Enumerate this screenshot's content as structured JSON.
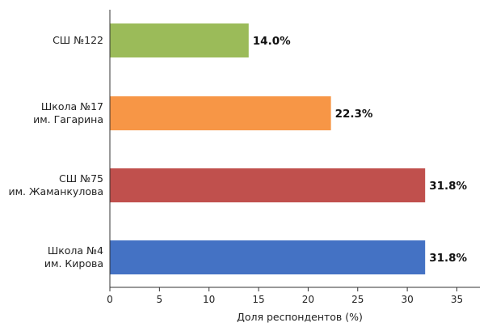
{
  "chart_data": {
    "type": "bar",
    "orientation": "horizontal",
    "categories": [
      [
        "СШ №122"
      ],
      [
        "Школа №17",
        "им. Гагарина"
      ],
      [
        "СШ №75",
        "им. Жаманкулова"
      ],
      [
        "Школа №4",
        "им. Кирова"
      ]
    ],
    "values": [
      14.0,
      22.3,
      31.8,
      31.8
    ],
    "value_labels": [
      "14.0%",
      "22.3%",
      "31.8%",
      "31.8%"
    ],
    "colors": [
      "#9bbb59",
      "#f79646",
      "#c0504d",
      "#4472c4"
    ],
    "xlabel": "Доля респондентов (%)",
    "ylabel": "",
    "title": "",
    "xlim": [
      0,
      37
    ],
    "xticks": [
      0,
      5,
      10,
      15,
      20,
      25,
      30,
      35
    ],
    "grid": false,
    "legend": "none"
  }
}
